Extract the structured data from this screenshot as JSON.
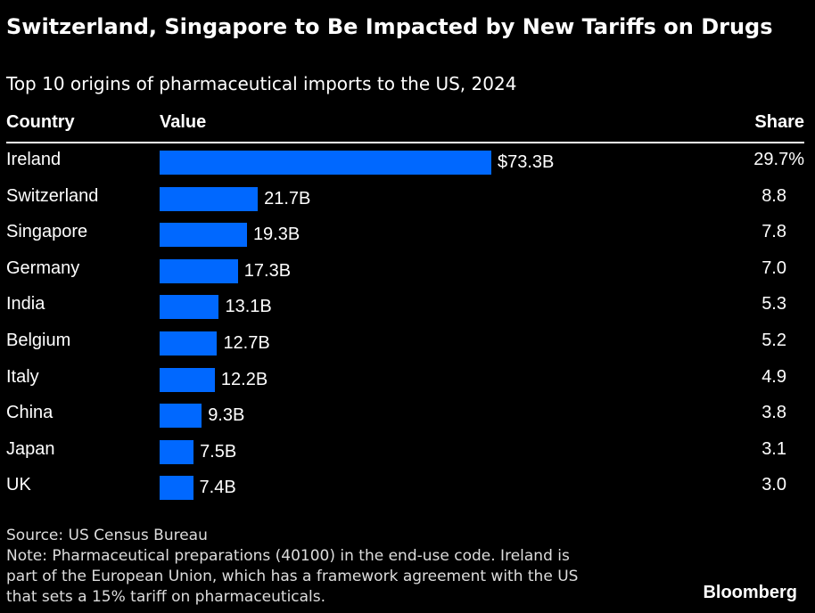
{
  "title": "Switzerland, Singapore to Be Impacted by New Tariffs on Drugs",
  "subtitle": "Top 10 origins of pharmaceutical imports to the US, 2024",
  "headers": {
    "country": "Country",
    "value": "Value",
    "share": "Share"
  },
  "source": "Source: US Census Bureau",
  "note_lines": [
    "Note: Pharmaceutical preparations (40100) in the end-use code. Ireland is",
    "part of the European Union, which has a framework agreement with the US",
    "that sets a 15% tariff on pharmaceuticals."
  ],
  "logo": "Bloomberg",
  "colors": {
    "bar": "#0068ff",
    "background": "#000000",
    "text": "#ffffff"
  },
  "chart_data": {
    "type": "bar",
    "orientation": "horizontal",
    "categories": [
      "Ireland",
      "Switzerland",
      "Singapore",
      "Germany",
      "India",
      "Belgium",
      "Italy",
      "China",
      "Japan",
      "UK"
    ],
    "values": [
      73.3,
      21.7,
      19.3,
      17.3,
      13.1,
      12.7,
      12.2,
      9.3,
      7.5,
      7.4
    ],
    "value_labels": [
      "$73.3B",
      "21.7B",
      "19.3B",
      "17.3B",
      "13.1B",
      "12.7B",
      "12.2B",
      "9.3B",
      "7.5B",
      "7.4B"
    ],
    "share_labels": [
      "29.7%",
      "8.8",
      "7.8",
      "7.0",
      "5.3",
      "5.2",
      "4.9",
      "3.8",
      "3.1",
      "3.0"
    ],
    "value_unit": "USD billions"
  }
}
